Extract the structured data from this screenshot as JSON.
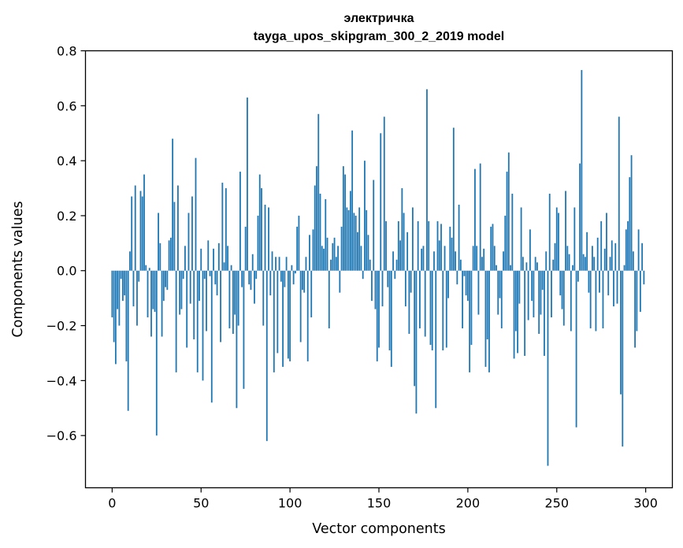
{
  "chart_data": {
    "type": "bar",
    "title": "электричка",
    "subtitle": "tayga_upos_skipgram_300_2_2019 model",
    "xlabel": "Vector components",
    "ylabel": "Components values",
    "xlim": [
      -15,
      315
    ],
    "ylim": [
      -0.79,
      0.8
    ],
    "xticks": [
      0,
      50,
      100,
      150,
      200,
      250,
      300
    ],
    "yticks": [
      -0.6,
      -0.4,
      -0.2,
      0.0,
      0.2,
      0.4,
      0.6,
      0.8
    ],
    "ytick_labels": [
      "−0.6",
      "−0.4",
      "−0.2",
      "0.0",
      "0.2",
      "0.4",
      "0.6",
      "0.8"
    ],
    "bar_color": "#1f77b4",
    "grid": false,
    "x": "0..299 (component index)",
    "values": [
      -0.17,
      -0.26,
      -0.34,
      -0.14,
      -0.2,
      -0.03,
      -0.11,
      -0.09,
      -0.33,
      -0.51,
      0.07,
      0.27,
      -0.13,
      0.31,
      -0.2,
      -0.04,
      0.29,
      0.27,
      0.35,
      0.02,
      -0.17,
      0.01,
      -0.24,
      -0.14,
      -0.15,
      -0.6,
      0.21,
      0.1,
      -0.24,
      -0.11,
      -0.06,
      -0.07,
      0.11,
      0.12,
      0.48,
      0.25,
      -0.37,
      0.31,
      -0.16,
      -0.14,
      -0.03,
      0.09,
      -0.28,
      0.21,
      -0.12,
      0.27,
      -0.25,
      0.41,
      -0.37,
      -0.11,
      0.08,
      -0.4,
      -0.03,
      -0.22,
      0.11,
      -0.02,
      -0.48,
      0.08,
      -0.05,
      -0.09,
      0.1,
      -0.26,
      0.32,
      0.03,
      0.3,
      0.09,
      -0.21,
      0.02,
      -0.23,
      -0.16,
      -0.5,
      -0.2,
      0.36,
      -0.06,
      -0.43,
      0.16,
      0.63,
      -0.05,
      -0.07,
      0.06,
      -0.12,
      -0.03,
      0.2,
      0.35,
      0.3,
      -0.2,
      0.24,
      -0.62,
      0.23,
      -0.09,
      0.07,
      -0.37,
      0.05,
      -0.3,
      0.05,
      -0.04,
      -0.35,
      -0.06,
      0.05,
      -0.32,
      -0.33,
      0.02,
      -0.05,
      -0.01,
      0.16,
      0.2,
      -0.26,
      -0.07,
      -0.08,
      0.05,
      -0.33,
      0.13,
      -0.17,
      0.15,
      0.31,
      0.38,
      0.57,
      0.28,
      0.09,
      0.08,
      0.26,
      0.12,
      -0.21,
      0.04,
      0.1,
      0.12,
      0.05,
      0.09,
      -0.08,
      0.16,
      0.38,
      0.35,
      0.23,
      0.22,
      0.29,
      0.51,
      0.21,
      0.2,
      0.14,
      0.23,
      0.09,
      -0.03,
      0.4,
      0.22,
      0.13,
      0.04,
      -0.11,
      0.33,
      -0.14,
      -0.33,
      -0.28,
      0.5,
      -0.13,
      0.56,
      0.18,
      -0.06,
      -0.29,
      -0.35,
      0.07,
      -0.03,
      0.04,
      0.18,
      0.11,
      0.3,
      0.21,
      -0.13,
      0.14,
      -0.23,
      -0.08,
      0.23,
      -0.42,
      -0.52,
      0.18,
      -0.21,
      0.08,
      0.09,
      -0.24,
      0.66,
      0.18,
      -0.27,
      -0.29,
      0.07,
      -0.5,
      0.18,
      0.11,
      0.17,
      -0.29,
      0.09,
      -0.28,
      -0.1,
      0.16,
      0.12,
      0.52,
      0.07,
      -0.05,
      0.24,
      0.04,
      -0.21,
      -0.02,
      -0.09,
      -0.11,
      -0.37,
      -0.27,
      0.09,
      0.37,
      0.09,
      -0.16,
      0.39,
      0.05,
      0.08,
      -0.35,
      -0.25,
      -0.37,
      0.16,
      0.17,
      0.09,
      0.02,
      -0.16,
      -0.1,
      -0.21,
      0.07,
      0.2,
      0.36,
      0.43,
      0.02,
      0.28,
      -0.32,
      -0.22,
      -0.3,
      -0.12,
      0.23,
      0.05,
      -0.31,
      0.03,
      -0.18,
      0.15,
      -0.11,
      -0.17,
      0.05,
      0.03,
      -0.23,
      -0.16,
      -0.07,
      -0.31,
      0.07,
      -0.71,
      0.28,
      -0.17,
      0.04,
      0.1,
      0.23,
      0.21,
      -0.09,
      -0.14,
      -0.2,
      0.29,
      0.09,
      0.06,
      -0.22,
      0.02,
      0.23,
      -0.57,
      -0.04,
      0.39,
      0.73,
      0.06,
      0.05,
      0.14,
      -0.08,
      -0.21,
      0.09,
      0.05,
      -0.22,
      0.12,
      -0.08,
      0.18,
      -0.21,
      0.08,
      0.21,
      -0.09,
      0.05,
      0.11,
      -0.13,
      0.1,
      -0.12,
      0.56,
      -0.45,
      -0.64,
      0.02,
      0.15,
      0.18,
      0.34,
      0.42,
      0.07,
      -0.28,
      -0.22,
      0.15,
      -0.15,
      0.1,
      -0.05
    ]
  }
}
